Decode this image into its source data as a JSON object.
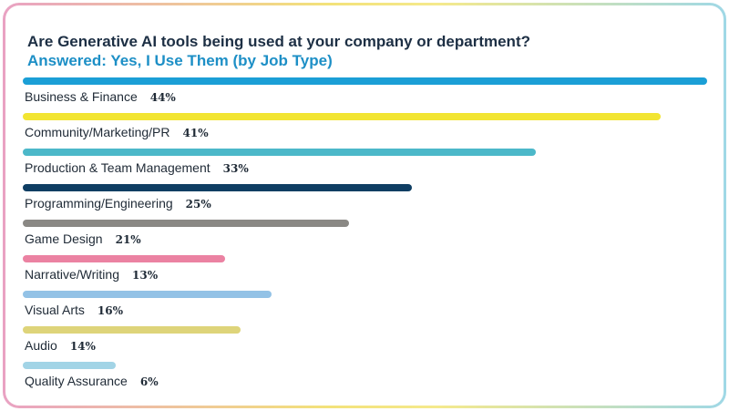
{
  "chart_data": {
    "type": "bar",
    "orientation": "horizontal",
    "title": "Are Generative AI tools being used at your company or department?",
    "subtitle": "Answered: Yes, I Use Them (by Job Type)",
    "categories": [
      "Business & Finance",
      "Community/Marketing/PR",
      "Production & Team Management",
      "Programming/Engineering",
      "Game Design",
      "Narrative/Writing",
      "Visual Arts",
      "Audio",
      "Quality Assurance"
    ],
    "values": [
      44,
      41,
      33,
      25,
      21,
      13,
      16,
      14,
      6
    ],
    "value_labels": [
      "44%",
      "41%",
      "33%",
      "25%",
      "21%",
      "13%",
      "16%",
      "14%",
      "6%"
    ],
    "colors": [
      "#1b9fd6",
      "#f2e532",
      "#4cb8c9",
      "#0f3e63",
      "#8a8884",
      "#eb82a2",
      "#93c2e6",
      "#ded47a",
      "#a2d4e6"
    ],
    "xlim": [
      0,
      44
    ],
    "grid": false,
    "legend": "none"
  },
  "colors": {
    "title": "#1d2f44",
    "subtitle": "#1d8fc6"
  }
}
